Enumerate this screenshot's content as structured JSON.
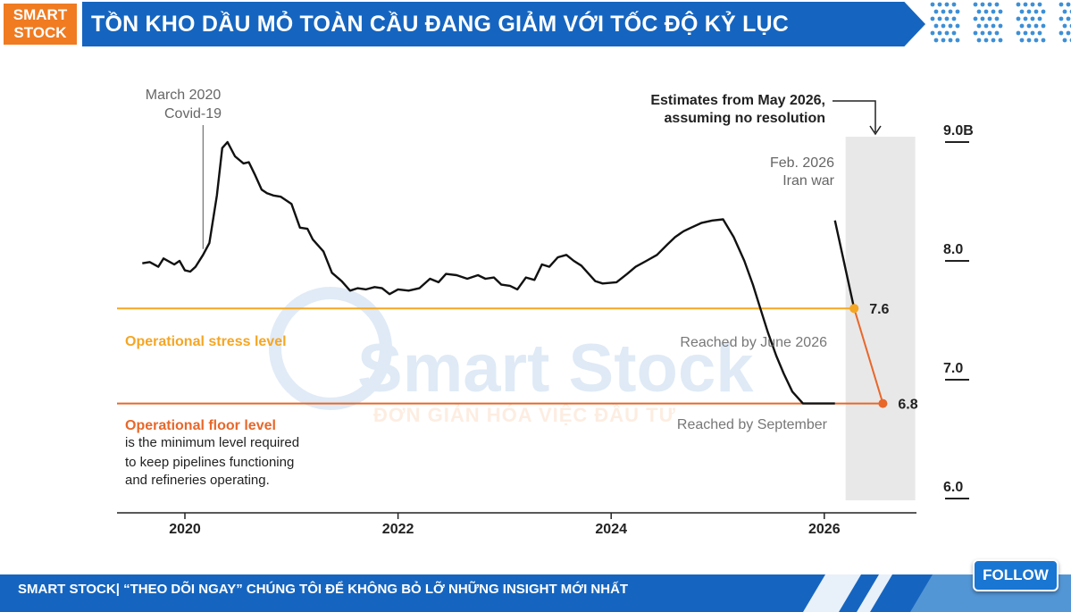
{
  "header": {
    "brand_line1": "SMART",
    "brand_line2": "STOCK",
    "title": "TỒN KHO DẦU MỎ TOÀN CẦU ĐANG GIẢM VỚI TỐC ĐỘ KỶ LỤC"
  },
  "watermark": {
    "line1": "Smart Stock",
    "line2": "ĐƠN GIẢN HÓA VIỆC ĐẦU TƯ"
  },
  "footer": {
    "text": "SMART STOCK| “THEO DÕI NGAY” CHÚNG TÔI ĐỂ KHÔNG BỎ LỠ NHỮNG INSIGHT MỚI NHẤT",
    "follow_label": "FOLLOW"
  },
  "colors": {
    "brand_orange": "#f07b21",
    "brand_blue": "#1565c0",
    "stress_line": "#f5a623",
    "floor_line": "#e8672a",
    "estimate_band": "#e8e8e8",
    "series_line": "#111111"
  },
  "chart_data": {
    "type": "line",
    "title": "",
    "xlabel": "",
    "ylabel": "",
    "ylim": [
      6.0,
      9.0
    ],
    "xlim": [
      2019.6,
      2026.9
    ],
    "x_ticks": [
      "2020",
      "2022",
      "2024",
      "2026"
    ],
    "y_ticks": [
      "9.0B",
      "8.0",
      "7.0",
      "6.0"
    ],
    "series": [
      {
        "x": [
          2019.6,
          2019.67,
          2019.75,
          2019.8,
          2019.9,
          2019.95,
          2020.0,
          2020.05,
          2020.1,
          2020.17,
          2020.23,
          2020.3,
          2020.35,
          2020.4,
          2020.47,
          2020.55,
          2020.6,
          2020.66,
          2020.72,
          2020.77,
          2020.83,
          2020.9,
          2021.0,
          2021.08,
          2021.15,
          2021.2,
          2021.3,
          2021.38,
          2021.47,
          2021.55,
          2021.62,
          2021.7,
          2021.78,
          2021.85,
          2021.92,
          2022.0,
          2022.1,
          2022.2,
          2022.3,
          2022.38,
          2022.45,
          2022.55,
          2022.65,
          2022.75,
          2022.82,
          2022.9,
          2022.97,
          2023.05,
          2023.12,
          2023.2,
          2023.28,
          2023.35,
          2023.42,
          2023.5,
          2023.58,
          2023.65,
          2023.72,
          2023.78,
          2023.85,
          2023.92,
          2024.05,
          2024.15,
          2024.23,
          2024.33,
          2024.43,
          2024.53,
          2024.6,
          2024.68,
          2024.75,
          2024.85,
          2024.95,
          2025.05,
          2025.15,
          2025.25,
          2025.33,
          2025.4,
          2025.47,
          2025.55,
          2025.62,
          2025.7,
          2025.8,
          2025.88,
          2025.95,
          2026.0,
          2026.1,
          2026.2,
          2026.3,
          2026.55
        ],
        "y": [
          7.98,
          7.99,
          7.95,
          8.02,
          7.97,
          8.0,
          7.92,
          7.91,
          7.95,
          8.05,
          8.15,
          8.55,
          8.95,
          9.0,
          8.88,
          8.82,
          8.83,
          8.72,
          8.6,
          8.57,
          8.55,
          8.54,
          8.48,
          8.28,
          8.27,
          8.18,
          8.08,
          7.9,
          7.83,
          7.75,
          7.77,
          7.76,
          7.78,
          7.77,
          7.72,
          7.76,
          7.75,
          7.77,
          7.85,
          7.82,
          7.89,
          7.88,
          7.85,
          7.88,
          7.85,
          7.86,
          7.8,
          7.79,
          7.76,
          7.86,
          7.84,
          7.97,
          7.95,
          8.03,
          8.05,
          8.0,
          7.96,
          7.9,
          7.83,
          7.81,
          7.82,
          7.89,
          7.95,
          8.0,
          8.05,
          8.14,
          8.2,
          8.25,
          8.28,
          8.32,
          8.34,
          8.35,
          8.2,
          8.0,
          7.8,
          7.6,
          7.4,
          7.2,
          7.05,
          6.9,
          6.8,
          6.8,
          6.8,
          6.8,
          6.8,
          6.8,
          6.8,
          6.8
        ]
      }
    ],
    "projection": {
      "x": [
        2026.1,
        2026.28,
        2026.55
      ],
      "y": [
        8.34,
        7.6,
        6.8
      ]
    },
    "reference_lines": [
      {
        "value": 7.6,
        "value_label": "7.6",
        "label": "Operational stress level",
        "note": "Reached by June 2026"
      },
      {
        "value": 6.8,
        "value_label": "6.8",
        "label": "Operational floor level",
        "note": "Reached by September"
      }
    ],
    "floor_description": [
      "is the minimum level required",
      "to keep pipelines functioning",
      "and refineries operating."
    ],
    "annotations": {
      "covid": [
        "March 2020",
        "Covid-19"
      ],
      "iran": [
        "Feb. 2026",
        "Iran war"
      ],
      "estimate": [
        "Estimates from May 2026,",
        "assuming no resolution"
      ]
    },
    "estimate_band_start": 2026.2,
    "grid": false
  }
}
